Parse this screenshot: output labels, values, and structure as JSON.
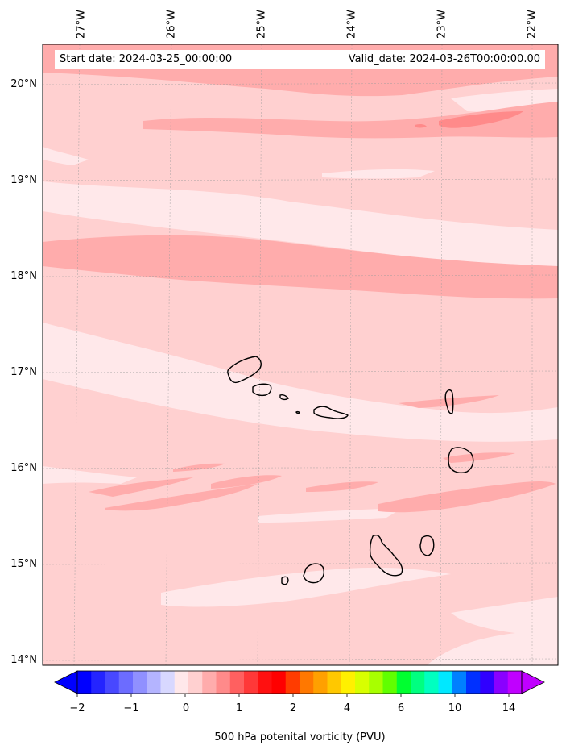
{
  "map": {
    "start_date": "Start date: 2024-03-25_00:00:00",
    "valid_date": "Valid_date: 2024-03-26T00:00:00.00",
    "lon_labels": [
      "27°W",
      "26°W",
      "25°W",
      "24°W",
      "23°W",
      "22°W"
    ],
    "lat_labels": [
      "20°N",
      "19°N",
      "18°N",
      "17°N",
      "16°N",
      "15°N",
      "14°N"
    ],
    "region": "Cape Verde Islands",
    "extent": {
      "lon_min": -27.4,
      "lon_max": -21.7,
      "lat_min": 13.95,
      "lat_max": 20.4
    },
    "colors": {
      "background": "#ffd0d0",
      "light_band": "#ffe8ea",
      "medium_band": "#ffacac",
      "strong_band": "#ff8a8a",
      "coastline": "#000000"
    }
  },
  "colorbar": {
    "label": "500 hPa potenital vorticity (PVU)",
    "ticks": [
      "−2",
      "−1",
      "0",
      "1",
      "2",
      "4",
      "6",
      "10",
      "14"
    ],
    "colors": [
      "#0000ff",
      "#2424ff",
      "#4848ff",
      "#6c6cff",
      "#9090ff",
      "#b4b4ff",
      "#d8d8ff",
      "#ffe8ea",
      "#ffd0d0",
      "#ffacac",
      "#ff8a8a",
      "#ff6060",
      "#ff3838",
      "#ff1010",
      "#ff0000",
      "#ff3c00",
      "#ff7800",
      "#ffa000",
      "#ffc800",
      "#fff000",
      "#d8ff00",
      "#a8ff00",
      "#60ff00",
      "#00ff30",
      "#00ff80",
      "#00ffc0",
      "#00e8ff",
      "#0080ff",
      "#0030ff",
      "#3000ff",
      "#8a00ff",
      "#c000ff"
    ]
  }
}
